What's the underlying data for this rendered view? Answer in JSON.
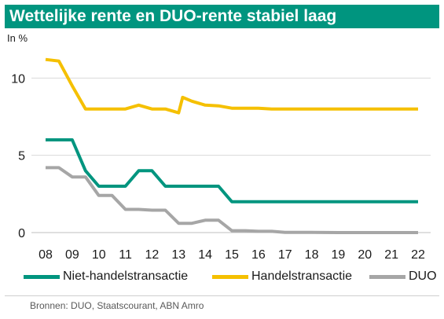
{
  "header": {
    "title": "Wettelijke rente en DUO-rente stabiel laag"
  },
  "unit_label": "In %",
  "source_note": "Bronnen: DUO, Staatscourant, ABN Amro",
  "legend": {
    "niet": "Niet-handelstransactie",
    "handel": "Handelstransactie",
    "duo": "DUO"
  },
  "colors": {
    "niet": "#00957f",
    "handel": "#f5c000",
    "duo": "#a6a6a6",
    "grid": "#d9d9d9",
    "accent": "#00957f"
  },
  "chart_data": {
    "type": "line",
    "title": "Wettelijke rente en DUO-rente stabiel laag",
    "xlabel": "",
    "ylabel": "In %",
    "x_ticks": [
      "08",
      "09",
      "10",
      "11",
      "12",
      "13",
      "14",
      "15",
      "16",
      "17",
      "18",
      "19",
      "20",
      "21",
      "22"
    ],
    "xlim": [
      8,
      22
    ],
    "ylim": [
      0,
      12
    ],
    "y_ticks": [
      0,
      5,
      10
    ],
    "grid": "horizontal",
    "legend_position": "bottom",
    "series": [
      {
        "name": "Niet-handelstransactie",
        "color": "#00957f",
        "points": [
          [
            8,
            6
          ],
          [
            9,
            6
          ],
          [
            9.5,
            4
          ],
          [
            10,
            3
          ],
          [
            11,
            3
          ],
          [
            11.5,
            4
          ],
          [
            12,
            4
          ],
          [
            12.5,
            3
          ],
          [
            13,
            3
          ],
          [
            14,
            3
          ],
          [
            14.5,
            3
          ],
          [
            15,
            2
          ],
          [
            16,
            2
          ],
          [
            17,
            2
          ],
          [
            18,
            2
          ],
          [
            19,
            2
          ],
          [
            20,
            2
          ],
          [
            21,
            2
          ],
          [
            22,
            2
          ]
        ]
      },
      {
        "name": "Handelstransactie",
        "color": "#f5c000",
        "points": [
          [
            8,
            11.2
          ],
          [
            8.5,
            11.1
          ],
          [
            9,
            9.5
          ],
          [
            9.5,
            8
          ],
          [
            10,
            8
          ],
          [
            11,
            8
          ],
          [
            11.5,
            8.25
          ],
          [
            12,
            8
          ],
          [
            12.5,
            8
          ],
          [
            13,
            7.75
          ],
          [
            13.15,
            8.75
          ],
          [
            13.5,
            8.5
          ],
          [
            14,
            8.25
          ],
          [
            14.5,
            8.2
          ],
          [
            15,
            8.05
          ],
          [
            16,
            8.05
          ],
          [
            16.5,
            8
          ],
          [
            17,
            8
          ],
          [
            18,
            8
          ],
          [
            19,
            8
          ],
          [
            20,
            8
          ],
          [
            21,
            8
          ],
          [
            22,
            8
          ]
        ]
      },
      {
        "name": "DUO",
        "color": "#a6a6a6",
        "points": [
          [
            8,
            4.2
          ],
          [
            8.5,
            4.2
          ],
          [
            9,
            3.6
          ],
          [
            9.5,
            3.6
          ],
          [
            10,
            2.4
          ],
          [
            10.5,
            2.4
          ],
          [
            11,
            1.5
          ],
          [
            11.5,
            1.5
          ],
          [
            12,
            1.45
          ],
          [
            12.5,
            1.45
          ],
          [
            13,
            0.6
          ],
          [
            13.5,
            0.6
          ],
          [
            14,
            0.8
          ],
          [
            14.5,
            0.8
          ],
          [
            15,
            0.12
          ],
          [
            15.5,
            0.12
          ],
          [
            16,
            0.08
          ],
          [
            16.5,
            0.08
          ],
          [
            17,
            0.01
          ],
          [
            18,
            0.01
          ],
          [
            19,
            0
          ],
          [
            20,
            0
          ],
          [
            21,
            0
          ],
          [
            22,
            0
          ]
        ]
      }
    ]
  }
}
